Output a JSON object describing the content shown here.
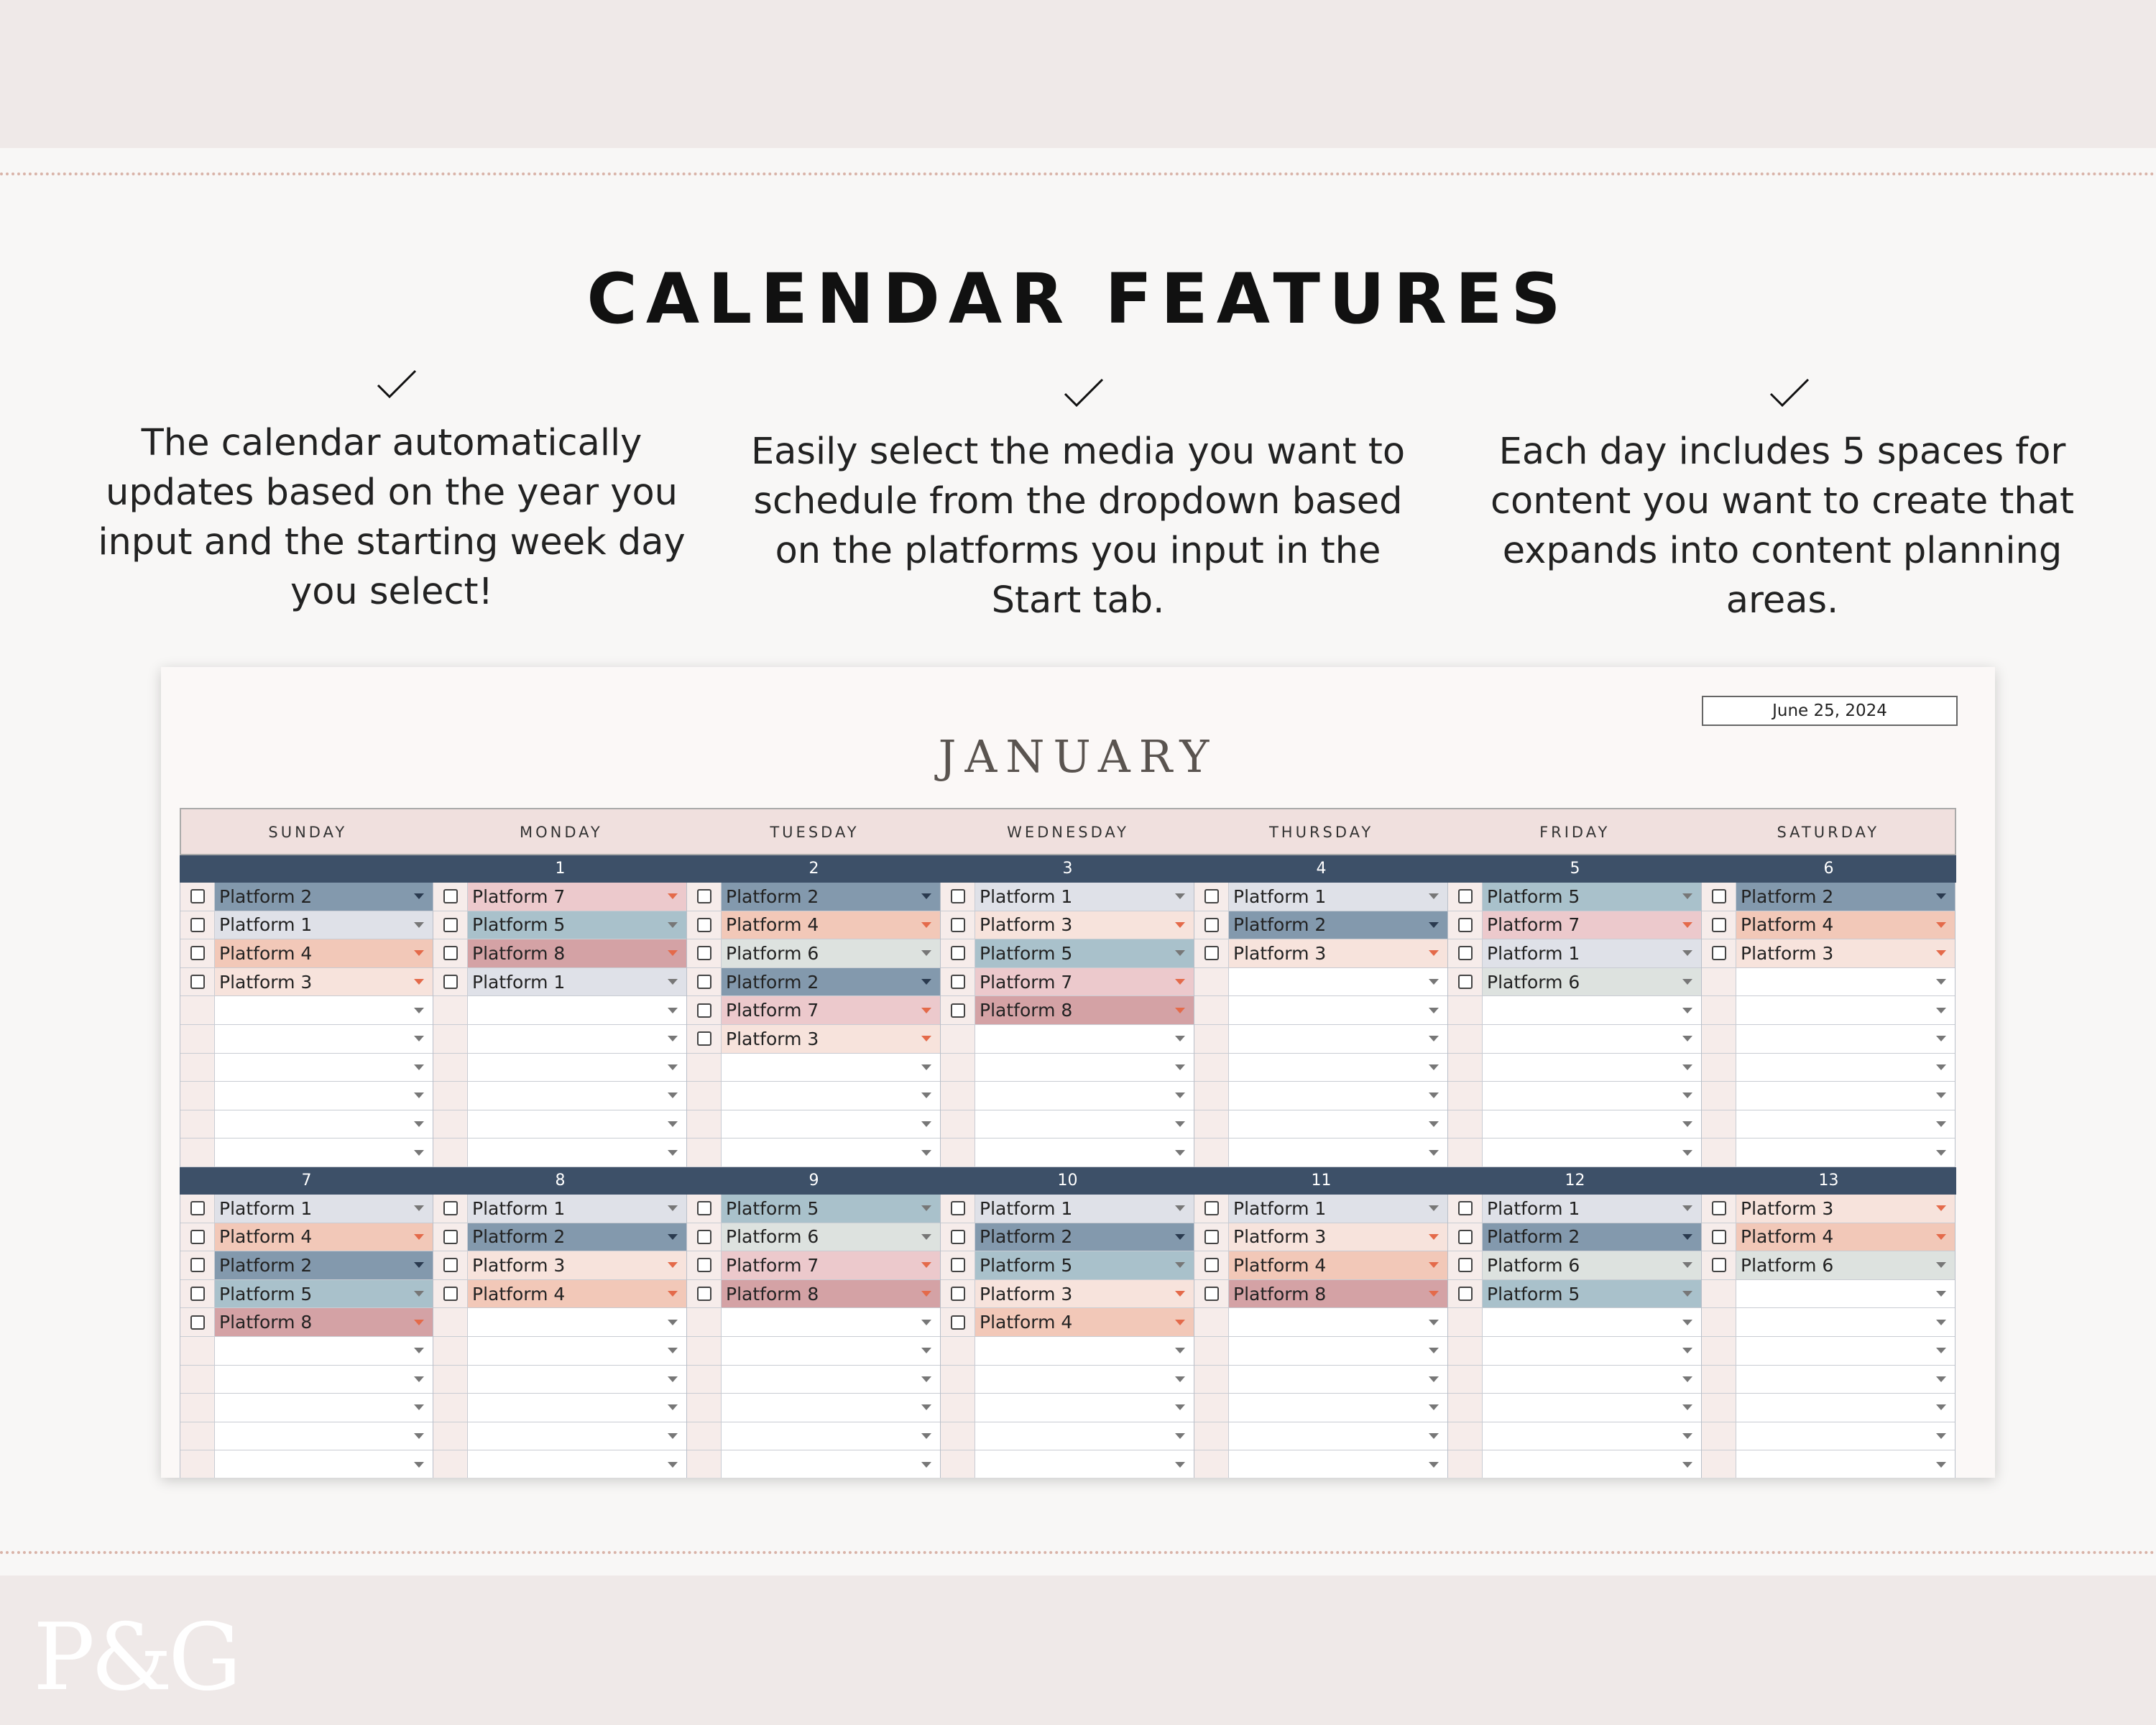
{
  "title": "CALENDAR FEATURES",
  "features": [
    "The calendar automatically updates based on the year you input and the starting week day you select!",
    "Easily select the media you want to schedule from the dropdown based on the platforms you input in the Start tab.",
    "Each day includes 5 spaces for content you want to create that expands into content planning areas."
  ],
  "calendar": {
    "month": "JANUARY",
    "date": "June 25, 2024",
    "days": [
      "SUNDAY",
      "MONDAY",
      "TUESDAY",
      "WEDNESDAY",
      "THURSDAY",
      "FRIDAY",
      "SATURDAY"
    ],
    "platform_colors": {
      "Platform 1": "#dfe1e8",
      "Platform 2": "#8399ad",
      "Platform 3": "#f7e3dc",
      "Platform 4": "#f2c8b8",
      "Platform 5": "#a9c1cb",
      "Platform 6": "#dde2df",
      "Platform 7": "#ecc9cc",
      "Platform 8": "#d4a2a5"
    },
    "weeks": [
      {
        "numbers": [
          "",
          "1",
          "2",
          "3",
          "4",
          "5",
          "6"
        ],
        "days": [
          [
            "Platform 2",
            "Platform 1",
            "Platform 4",
            "Platform 3"
          ],
          [
            "Platform 7",
            "Platform 5",
            "Platform 8",
            "Platform 1"
          ],
          [
            "Platform 2",
            "Platform 4",
            "Platform 6",
            "Platform 2",
            "Platform 7",
            "Platform 3"
          ],
          [
            "Platform 1",
            "Platform 3",
            "Platform 5",
            "Platform 7",
            "Platform 8"
          ],
          [
            "Platform 1",
            "Platform 2",
            "Platform 3"
          ],
          [
            "Platform 5",
            "Platform 7",
            "Platform 1",
            "Platform 6"
          ],
          [
            "Platform 2",
            "Platform 4",
            "Platform 3"
          ]
        ]
      },
      {
        "numbers": [
          "7",
          "8",
          "9",
          "10",
          "11",
          "12",
          "13"
        ],
        "days": [
          [
            "Platform 1",
            "Platform 4",
            "Platform 2",
            "Platform 5",
            "Platform 8"
          ],
          [
            "Platform 1",
            "Platform 2",
            "Platform 3",
            "Platform 4"
          ],
          [
            "Platform 5",
            "Platform 6",
            "Platform 7",
            "Platform 8"
          ],
          [
            "Platform 1",
            "Platform 2",
            "Platform 5",
            "Platform 3",
            "Platform 4"
          ],
          [
            "Platform 1",
            "Platform 3",
            "Platform 4",
            "Platform 8"
          ],
          [
            "Platform 1",
            "Platform 2",
            "Platform 6",
            "Platform 5"
          ],
          [
            "Platform 3",
            "Platform 4",
            "Platform 6"
          ]
        ]
      }
    ]
  },
  "logo": "P&G"
}
